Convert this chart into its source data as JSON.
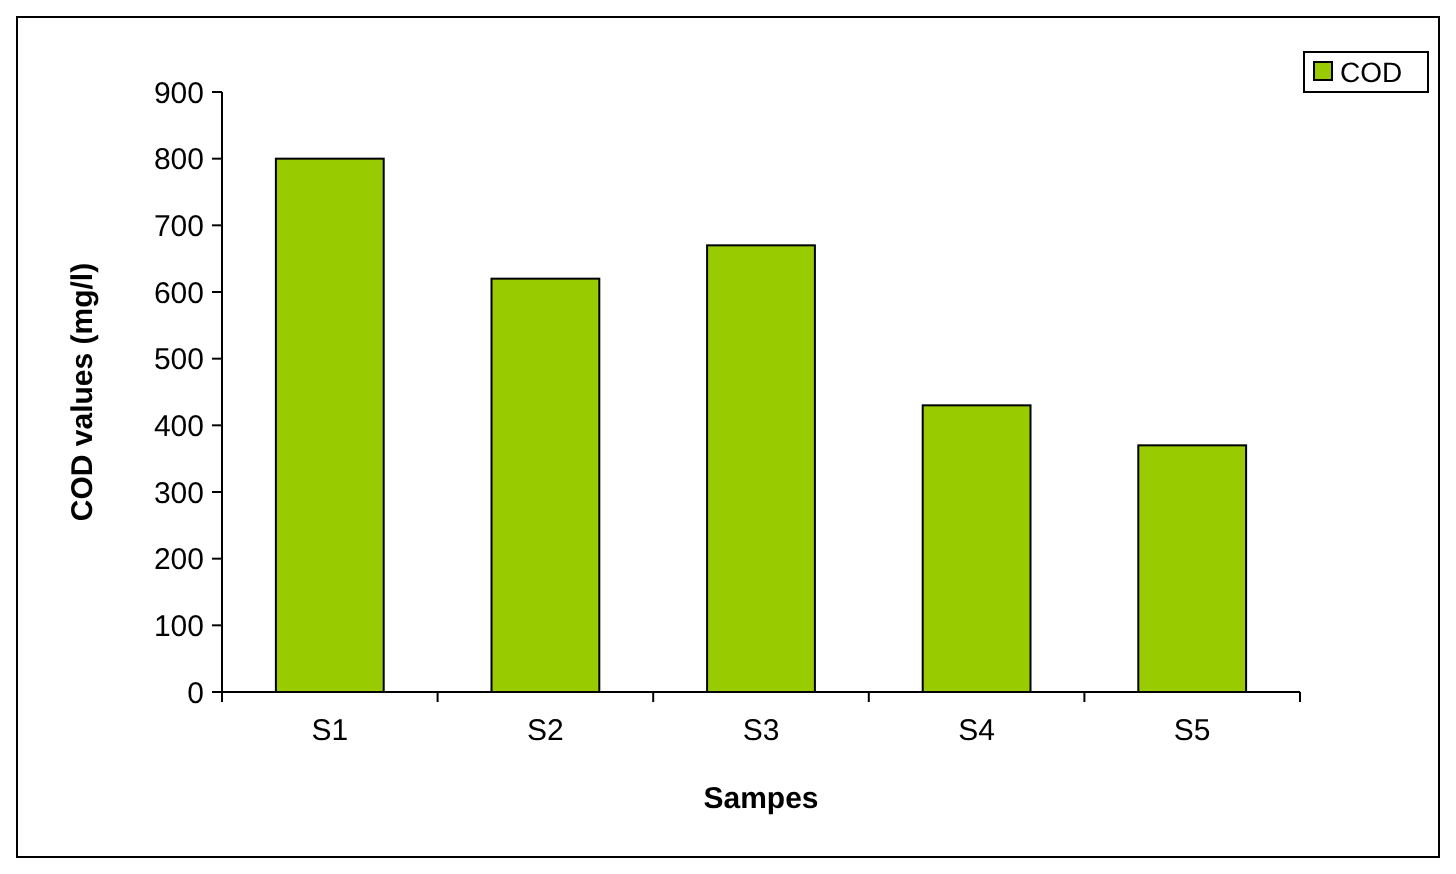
{
  "chart_data": {
    "type": "bar",
    "xlabel": "Sampes",
    "ylabel": "COD values (mg/l)",
    "categories": [
      "S1",
      "S2",
      "S3",
      "S4",
      "S5"
    ],
    "series": [
      {
        "name": "COD",
        "color": "#99cc00",
        "values": [
          800,
          620,
          670,
          430,
          370
        ]
      }
    ],
    "ylim": [
      0,
      900
    ],
    "yticks": [
      0,
      100,
      200,
      300,
      400,
      500,
      600,
      700,
      800,
      900
    ],
    "grid": false,
    "legend": "top right"
  }
}
